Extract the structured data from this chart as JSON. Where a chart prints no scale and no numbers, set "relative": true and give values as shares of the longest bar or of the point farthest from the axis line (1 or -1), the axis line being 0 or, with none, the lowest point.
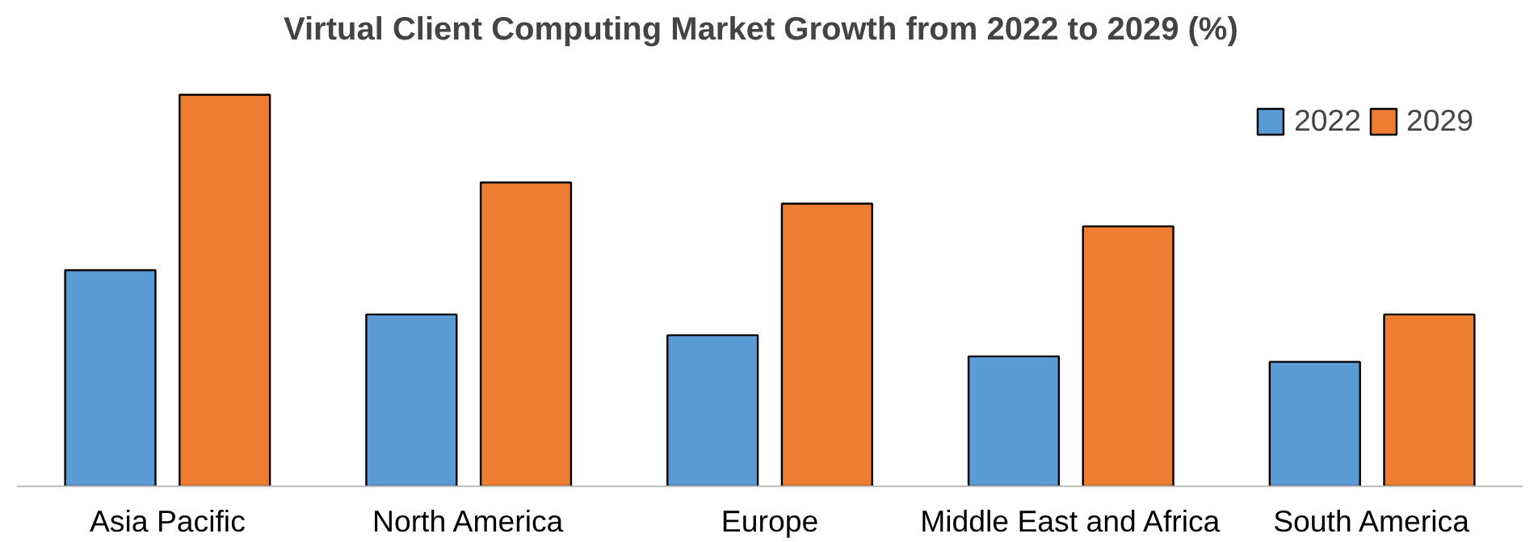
{
  "chart_data": {
    "type": "bar",
    "title": "Virtual Client Computing Market  Growth  from 2022 to 2029 (%)",
    "relative": true,
    "categories": [
      "Asia Pacific",
      "North America",
      "Europe",
      "Middle East and Africa",
      "South America"
    ],
    "series": [
      {
        "name": "2022",
        "color": "#5b9bd5",
        "values": [
          0.552,
          0.439,
          0.386,
          0.332,
          0.318
        ]
      },
      {
        "name": "2029",
        "color": "#ed7d31",
        "values": [
          1.0,
          0.776,
          0.722,
          0.664,
          0.439
        ]
      }
    ],
    "legend": "top right",
    "grid": false
  }
}
